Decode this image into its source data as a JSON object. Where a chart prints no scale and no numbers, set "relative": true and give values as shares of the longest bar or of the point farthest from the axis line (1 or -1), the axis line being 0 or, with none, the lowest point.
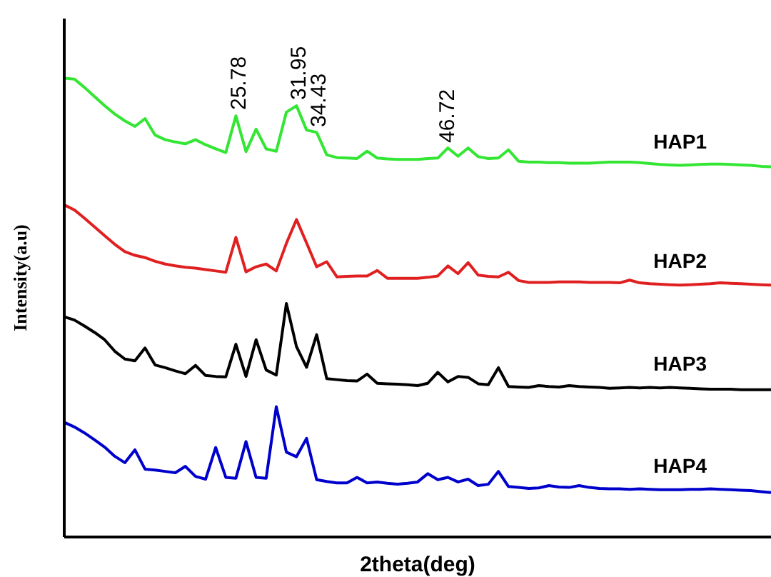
{
  "chart_data": {
    "type": "line",
    "relative": true,
    "xlabel": "2theta(deg)",
    "ylabel": "Intensity(a.u)",
    "grid": false,
    "legend": false,
    "categories": [
      null,
      null,
      null,
      null,
      null,
      null,
      null,
      null,
      null,
      null,
      null,
      null,
      null,
      null,
      null,
      null,
      null,
      null,
      null,
      null,
      null,
      null,
      null,
      null,
      null,
      null,
      null,
      null,
      null,
      null,
      null,
      null,
      null,
      null,
      null,
      null,
      null,
      null,
      null,
      null,
      null,
      null,
      null,
      null,
      null,
      null,
      null,
      null,
      null,
      null,
      null,
      null,
      null,
      null,
      null,
      null,
      null,
      null,
      null,
      null,
      null,
      null,
      null,
      null,
      null,
      null,
      null,
      null,
      null,
      null,
      null
    ],
    "series": [
      {
        "name": "HAP1",
        "color": "#33e633",
        "values": [
          1.0,
          0.998,
          0.98,
          0.96,
          0.94,
          0.922,
          0.907,
          0.895,
          0.912,
          0.876,
          0.866,
          0.861,
          0.857,
          0.866,
          0.855,
          0.846,
          0.838,
          0.918,
          0.84,
          0.889,
          0.846,
          0.841,
          0.926,
          0.94,
          0.887,
          0.882,
          0.833,
          0.827,
          0.826,
          0.825,
          0.841,
          0.826,
          0.824,
          0.823,
          0.823,
          0.823,
          0.825,
          0.826,
          0.848,
          0.83,
          0.848,
          0.829,
          0.825,
          0.826,
          0.844,
          0.819,
          0.817,
          0.817,
          0.816,
          0.816,
          0.815,
          0.815,
          0.815,
          0.816,
          0.817,
          0.817,
          0.817,
          0.816,
          0.814,
          0.812,
          0.811,
          0.81,
          0.811,
          0.812,
          0.813,
          0.813,
          0.812,
          0.811,
          0.81,
          0.808,
          0.807
        ]
      },
      {
        "name": "HAP2",
        "color": "#e02020",
        "values": [
          0.724,
          0.713,
          0.695,
          0.676,
          0.657,
          0.638,
          0.622,
          0.614,
          0.609,
          0.601,
          0.595,
          0.591,
          0.588,
          0.586,
          0.583,
          0.58,
          0.577,
          0.653,
          0.578,
          0.589,
          0.595,
          0.58,
          0.64,
          0.692,
          0.641,
          0.589,
          0.6,
          0.567,
          0.568,
          0.569,
          0.569,
          0.581,
          0.564,
          0.564,
          0.564,
          0.564,
          0.566,
          0.569,
          0.591,
          0.574,
          0.598,
          0.571,
          0.568,
          0.567,
          0.577,
          0.559,
          0.555,
          0.555,
          0.555,
          0.556,
          0.556,
          0.556,
          0.555,
          0.555,
          0.555,
          0.554,
          0.56,
          0.554,
          0.552,
          0.551,
          0.55,
          0.549,
          0.55,
          0.551,
          0.552,
          0.554,
          0.553,
          0.552,
          0.551,
          0.55,
          0.549
        ]
      },
      {
        "name": "HAP3",
        "color": "#000000",
        "values": [
          0.48,
          0.473,
          0.46,
          0.446,
          0.43,
          0.405,
          0.388,
          0.384,
          0.412,
          0.375,
          0.369,
          0.362,
          0.356,
          0.374,
          0.352,
          0.35,
          0.349,
          0.42,
          0.35,
          0.43,
          0.364,
          0.353,
          0.509,
          0.415,
          0.37,
          0.441,
          0.345,
          0.343,
          0.341,
          0.34,
          0.355,
          0.335,
          0.334,
          0.333,
          0.332,
          0.33,
          0.335,
          0.359,
          0.338,
          0.35,
          0.348,
          0.334,
          0.332,
          0.369,
          0.328,
          0.327,
          0.326,
          0.33,
          0.328,
          0.327,
          0.33,
          0.328,
          0.327,
          0.326,
          0.324,
          0.325,
          0.326,
          0.325,
          0.326,
          0.325,
          0.326,
          0.325,
          0.324,
          0.323,
          0.322,
          0.322,
          0.322,
          0.321,
          0.321,
          0.321,
          0.321
        ]
      },
      {
        "name": "HAP4",
        "color": "#0000cc",
        "values": [
          0.25,
          0.24,
          0.227,
          0.212,
          0.196,
          0.176,
          0.162,
          0.19,
          0.148,
          0.146,
          0.143,
          0.14,
          0.154,
          0.132,
          0.126,
          0.195,
          0.13,
          0.128,
          0.208,
          0.13,
          0.128,
          0.284,
          0.185,
          0.175,
          0.215,
          0.125,
          0.121,
          0.118,
          0.118,
          0.13,
          0.118,
          0.12,
          0.117,
          0.115,
          0.117,
          0.12,
          0.138,
          0.125,
          0.13,
          0.12,
          0.126,
          0.112,
          0.115,
          0.143,
          0.11,
          0.108,
          0.106,
          0.107,
          0.112,
          0.109,
          0.108,
          0.112,
          0.108,
          0.106,
          0.105,
          0.105,
          0.104,
          0.105,
          0.104,
          0.103,
          0.103,
          0.103,
          0.104,
          0.104,
          0.105,
          0.104,
          0.103,
          0.102,
          0.101,
          0.099,
          0.097
        ]
      }
    ],
    "annotations": [
      "25.78",
      "31.95",
      "34.43",
      "46.72"
    ]
  }
}
